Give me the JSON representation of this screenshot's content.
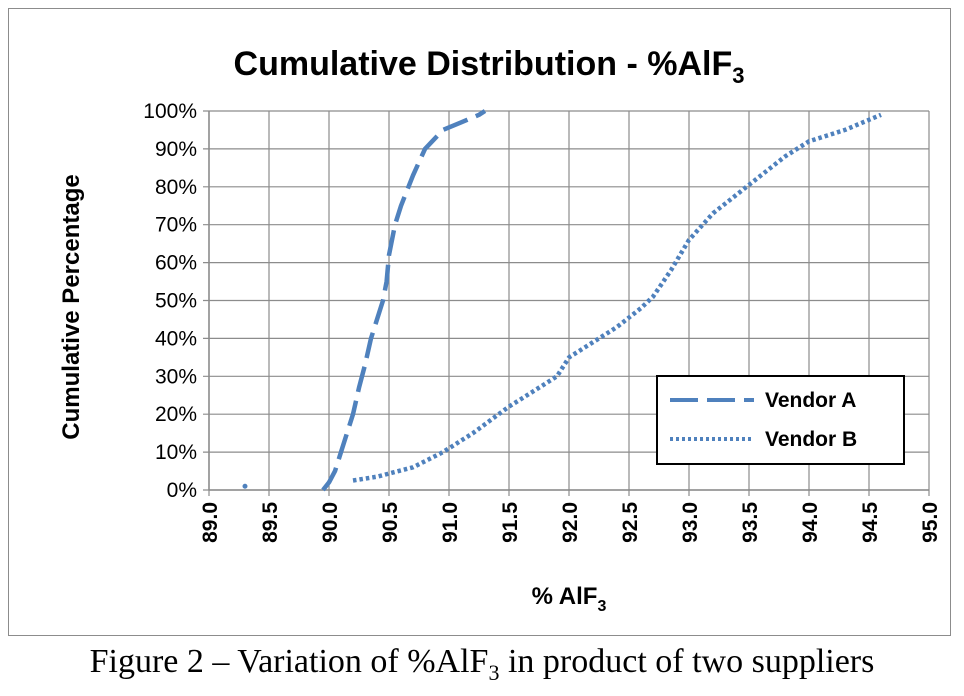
{
  "caption": {
    "before": "Figure 2 – Variation of %AlF",
    "sub": "3",
    "after": " in product of two suppliers"
  },
  "chart_data": {
    "type": "line",
    "title": {
      "text": "Cumulative Distribution - %AlF",
      "sub": "3"
    },
    "xlabel": {
      "text": "% AlF",
      "sub": "3"
    },
    "ylabel": "Cumulative Percentage",
    "xlim": [
      89.0,
      95.0
    ],
    "ylim": [
      0,
      100
    ],
    "x_ticks": [
      "89.0",
      "89.5",
      "90.0",
      "90.5",
      "91.0",
      "91.5",
      "92.0",
      "92.5",
      "93.0",
      "93.5",
      "94.0",
      "94.5",
      "95.0"
    ],
    "y_ticks": [
      "0%",
      "10%",
      "20%",
      "30%",
      "40%",
      "50%",
      "60%",
      "70%",
      "80%",
      "90%",
      "100%"
    ],
    "grid": true,
    "legend_position": "bottom-right",
    "series_color": "#4f81bd",
    "series": [
      {
        "name": "Vendor A",
        "style": "dashed",
        "points": [
          [
            89.95,
            0
          ],
          [
            90.0,
            2
          ],
          [
            90.05,
            5
          ],
          [
            90.1,
            10
          ],
          [
            90.15,
            15
          ],
          [
            90.2,
            20
          ],
          [
            90.25,
            27
          ],
          [
            90.3,
            33
          ],
          [
            90.35,
            40
          ],
          [
            90.4,
            45
          ],
          [
            90.45,
            50
          ],
          [
            90.48,
            55
          ],
          [
            90.5,
            62
          ],
          [
            90.55,
            70
          ],
          [
            90.6,
            75
          ],
          [
            90.7,
            83
          ],
          [
            90.8,
            90
          ],
          [
            90.95,
            95
          ],
          [
            91.1,
            97
          ],
          [
            91.25,
            99
          ],
          [
            91.3,
            100
          ]
        ]
      },
      {
        "name": "Vendor B",
        "style": "dotted",
        "points": [
          [
            89.3,
            1
          ],
          [
            90.2,
            2.5
          ],
          [
            90.4,
            3.5
          ],
          [
            90.7,
            6
          ],
          [
            90.95,
            10
          ],
          [
            91.2,
            15
          ],
          [
            91.5,
            22
          ],
          [
            91.7,
            26
          ],
          [
            91.9,
            30
          ],
          [
            92.0,
            35
          ],
          [
            92.2,
            39
          ],
          [
            92.4,
            43
          ],
          [
            92.6,
            48
          ],
          [
            92.7,
            51
          ],
          [
            92.85,
            58
          ],
          [
            93.0,
            66
          ],
          [
            93.2,
            73
          ],
          [
            93.4,
            78
          ],
          [
            93.6,
            83
          ],
          [
            93.8,
            88
          ],
          [
            94.0,
            92
          ],
          [
            94.3,
            95
          ],
          [
            94.6,
            99
          ]
        ]
      }
    ]
  }
}
